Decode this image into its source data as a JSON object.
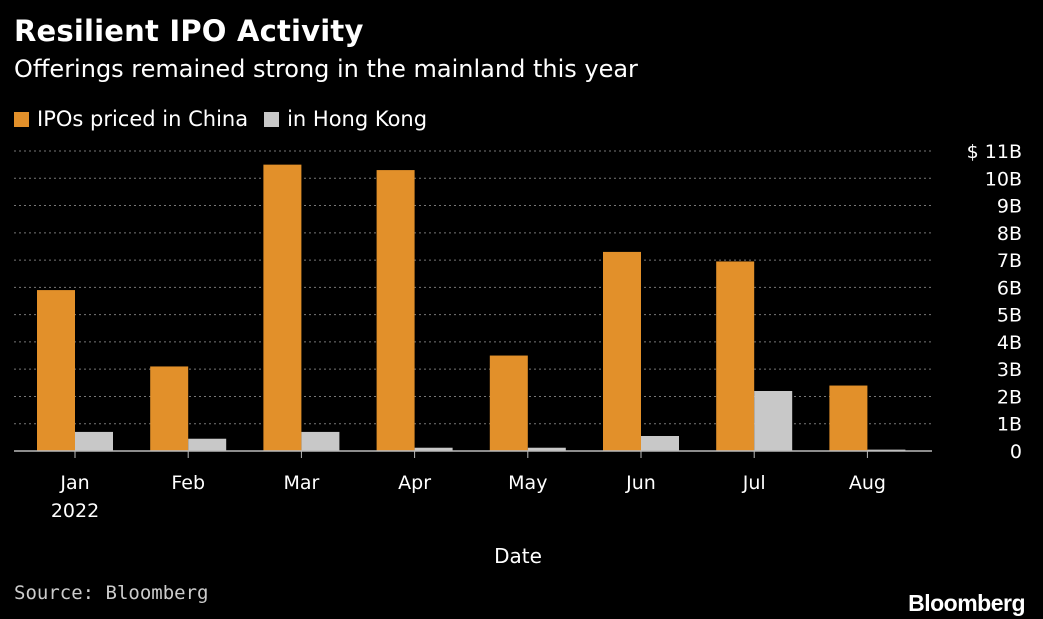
{
  "header": {
    "title": "Resilient IPO Activity",
    "subtitle": "Offerings remained strong in the mainland this year"
  },
  "legend": {
    "china_label": "IPOs priced in China",
    "hk_label": "in Hong Kong"
  },
  "footer": {
    "source": "Source: Bloomberg",
    "logo": "Bloomberg"
  },
  "colors": {
    "china": "#E2902A",
    "hong_kong": "#C8C8C8",
    "grid": "#777777",
    "background": "#000000"
  },
  "chart_data": {
    "type": "bar",
    "title": "Resilient IPO Activity",
    "subtitle": "Offerings remained strong in the mainland this year",
    "xlabel": "Date",
    "ylabel": "",
    "categories": [
      "Jan",
      "Feb",
      "Mar",
      "Apr",
      "May",
      "Jun",
      "Jul",
      "Aug"
    ],
    "year_label": "2022",
    "series": [
      {
        "name": "IPOs priced in China",
        "values": [
          5.9,
          3.1,
          10.5,
          10.3,
          3.5,
          7.3,
          6.95,
          2.4
        ]
      },
      {
        "name": "in Hong Kong",
        "values": [
          0.7,
          0.45,
          0.7,
          0.12,
          0.12,
          0.55,
          2.2,
          0.05
        ]
      }
    ],
    "ylim": [
      0,
      11
    ],
    "yticks": [
      {
        "value": 0,
        "label": "0"
      },
      {
        "value": 1,
        "label": "1B"
      },
      {
        "value": 2,
        "label": "2B"
      },
      {
        "value": 3,
        "label": "3B"
      },
      {
        "value": 4,
        "label": "4B"
      },
      {
        "value": 5,
        "label": "5B"
      },
      {
        "value": 6,
        "label": "6B"
      },
      {
        "value": 7,
        "label": "7B"
      },
      {
        "value": 8,
        "label": "8B"
      },
      {
        "value": 9,
        "label": "9B"
      },
      {
        "value": 10,
        "label": "10B"
      },
      {
        "value": 11,
        "label": "$ 11B"
      }
    ],
    "grid": true,
    "legend_position": "top-left",
    "y_axis_side": "right"
  }
}
